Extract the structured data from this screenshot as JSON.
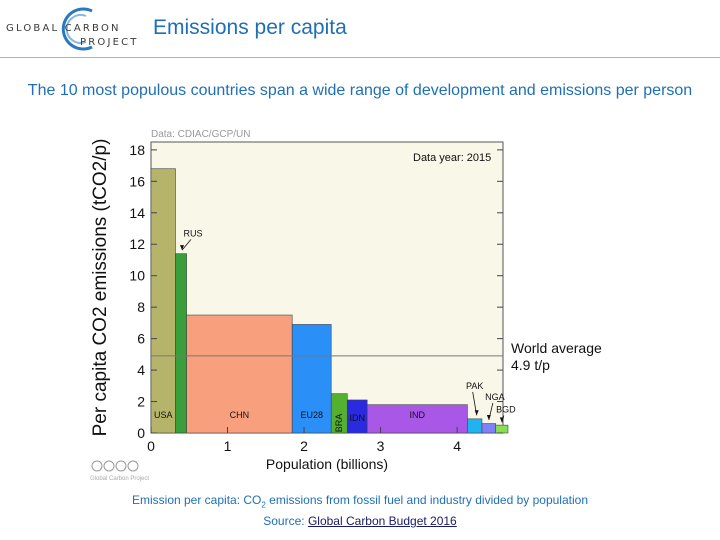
{
  "header": {
    "logo_line1": "GLOBAL CARBON",
    "logo_line2": "PROJECT",
    "title": "Emissions per capita"
  },
  "subtitle": "The 10 most populous countries span a wide range of development and emissions per person",
  "chart_data": {
    "type": "bar",
    "variant": "variable-width",
    "data_credit": "Data: CDIAC/GCP/UN",
    "data_year": "Data year: 2015",
    "xlabel": "Population (billions)",
    "ylabel": "Per capita CO2 emissions (tCO2/p)",
    "xlim": [
      0,
      4.6
    ],
    "ylim": [
      0,
      18.5
    ],
    "xticks": [
      0,
      1,
      2,
      3,
      4
    ],
    "yticks": [
      0,
      2,
      4,
      6,
      8,
      10,
      12,
      14,
      16,
      18
    ],
    "world_average": {
      "value": 4.9,
      "label_line1": "World average",
      "label_line2": "4.9 t/p"
    },
    "countries": [
      {
        "name": "USA",
        "population": 0.32,
        "value": 16.8,
        "color": "#b5b46a",
        "label": "inside"
      },
      {
        "name": "RUS",
        "population": 0.145,
        "value": 11.4,
        "color": "#3a9e3a",
        "label": "callout"
      },
      {
        "name": "CHN",
        "population": 1.38,
        "value": 7.5,
        "color": "#f8a07e",
        "label": "inside"
      },
      {
        "name": "EU28",
        "population": 0.51,
        "value": 6.9,
        "color": "#2a8ff6",
        "label": "inside"
      },
      {
        "name": "BRA",
        "population": 0.21,
        "value": 2.5,
        "color": "#55b030",
        "label": "vertical"
      },
      {
        "name": "IDN",
        "population": 0.26,
        "value": 2.1,
        "color": "#2a2ae0",
        "label": "inside"
      },
      {
        "name": "IND",
        "population": 1.31,
        "value": 1.8,
        "color": "#a957e6",
        "label": "inside"
      },
      {
        "name": "PAK",
        "population": 0.19,
        "value": 0.9,
        "color": "#1fb3f0",
        "label": "callout"
      },
      {
        "name": "NGA",
        "population": 0.18,
        "value": 0.6,
        "color": "#8080f8",
        "label": "callout"
      },
      {
        "name": "BGD",
        "population": 0.16,
        "value": 0.5,
        "color": "#88e050",
        "label": "callout"
      }
    ],
    "license_text": "Global Carbon Project"
  },
  "footer": {
    "caption_prefix": "Emission per capita: CO",
    "caption_sub": "2",
    "caption_suffix": " emissions from fossil fuel and industry divided by population",
    "source_prefix": "Source: ",
    "source_link": "Global Carbon Budget 2016"
  }
}
